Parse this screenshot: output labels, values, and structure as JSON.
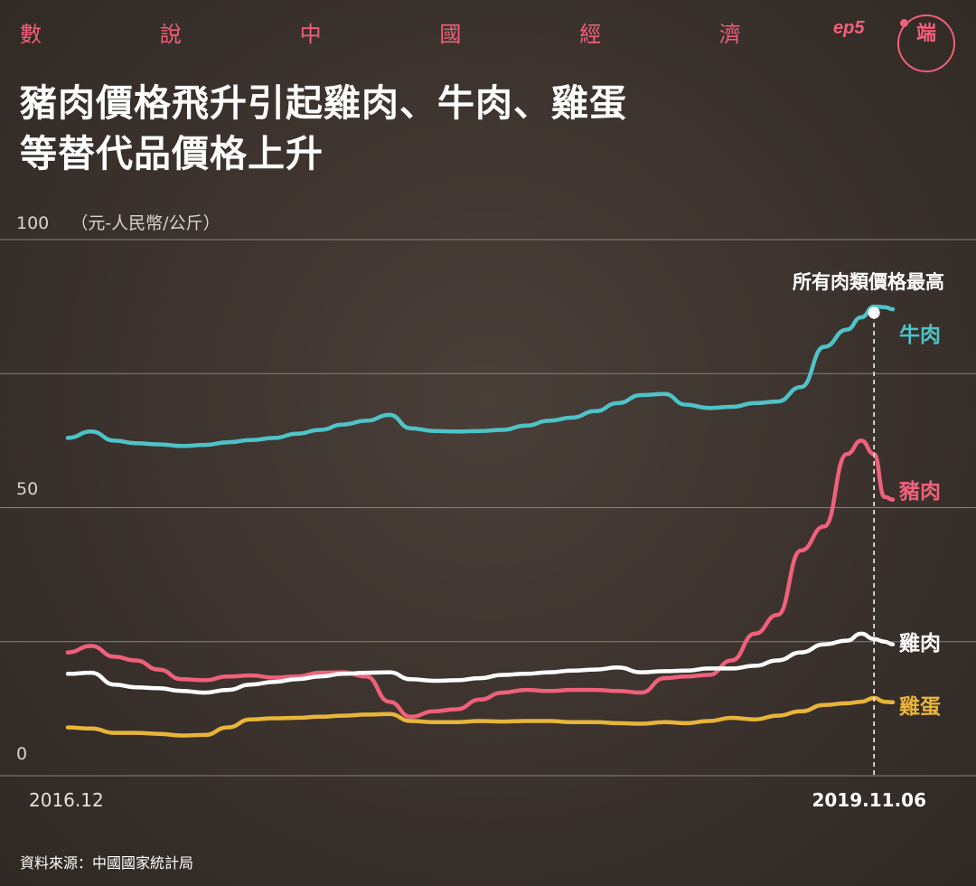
{
  "header": {
    "series_chars": [
      "數",
      "說",
      "中",
      "國",
      "經",
      "濟"
    ],
    "episode": "ep5",
    "logo_text": "端"
  },
  "headline": {
    "line1": "豬肉價格飛升引起雞肉、牛肉、雞蛋",
    "line2": "等替代品價格上升"
  },
  "colors": {
    "accent": "#f0607a",
    "beef": "#4ec3c8",
    "pork": "#f0607a",
    "chicken": "#ffffff",
    "egg": "#e8b53a",
    "grid": "#8a827c"
  },
  "chart_data": {
    "type": "line",
    "unit": "（元-人民幣/公斤）",
    "ylim": [
      0,
      100
    ],
    "y_ticks": [
      0,
      50,
      100
    ],
    "y_tick_labels": [
      "0",
      "50",
      "100"
    ],
    "grid": true,
    "x_start_label": "2016.12",
    "x_end_label": "2019.11.06",
    "annotation": "所有肉類價格最高",
    "x": [
      "2016-12-01",
      "2017-01-01",
      "2017-02-01",
      "2017-03-01",
      "2017-04-01",
      "2017-05-01",
      "2017-06-01",
      "2017-07-01",
      "2017-08-01",
      "2017-09-01",
      "2017-10-01",
      "2017-11-01",
      "2017-12-01",
      "2018-01-01",
      "2018-02-01",
      "2018-03-01",
      "2018-04-01",
      "2018-05-01",
      "2018-06-01",
      "2018-07-01",
      "2018-08-01",
      "2018-09-01",
      "2018-10-01",
      "2018-11-01",
      "2018-12-01",
      "2019-01-01",
      "2019-02-01",
      "2019-03-01",
      "2019-04-01",
      "2019-05-01",
      "2019-06-01",
      "2019-07-01",
      "2019-08-01",
      "2019-09-01",
      "2019-10-01",
      "2019-10-20",
      "2019-11-06",
      "2019-11-20",
      "2019-12-01"
    ],
    "series": [
      {
        "name": "牛肉",
        "color": "#4ec3c8",
        "values": [
          63.0,
          64.2,
          62.5,
          62.0,
          61.8,
          61.5,
          61.7,
          62.2,
          62.6,
          63.0,
          63.8,
          64.5,
          65.5,
          66.2,
          67.3,
          64.8,
          64.3,
          64.2,
          64.3,
          64.5,
          65.3,
          66.2,
          66.8,
          68.0,
          69.5,
          71.0,
          71.2,
          69.2,
          68.6,
          68.8,
          69.5,
          69.8,
          72.5,
          80.0,
          83.2,
          85.5,
          87.5,
          87.4,
          87.0
        ]
      },
      {
        "name": "豬肉",
        "color": "#f0607a",
        "values": [
          23.0,
          24.2,
          22.2,
          21.5,
          19.8,
          18.0,
          17.8,
          18.5,
          18.7,
          18.3,
          18.5,
          19.2,
          19.3,
          18.5,
          13.8,
          11.0,
          12.0,
          12.4,
          14.2,
          15.5,
          16.0,
          15.8,
          16.0,
          16.0,
          15.8,
          15.5,
          18.2,
          18.5,
          18.8,
          21.5,
          26.5,
          30.0,
          42.0,
          46.5,
          60.0,
          62.5,
          60.0,
          52.0,
          51.5
        ]
      },
      {
        "name": "雞肉",
        "color": "#ffffff",
        "values": [
          19.0,
          19.2,
          17.0,
          16.5,
          16.3,
          15.8,
          15.5,
          16.0,
          17.0,
          17.5,
          18.0,
          18.5,
          19.0,
          19.2,
          19.3,
          18.0,
          17.7,
          17.8,
          18.2,
          18.8,
          19.0,
          19.3,
          19.6,
          19.8,
          20.2,
          19.3,
          19.5,
          19.6,
          20.0,
          20.0,
          20.5,
          21.5,
          23.0,
          24.5,
          25.2,
          26.5,
          25.5,
          25.0,
          24.5
        ]
      },
      {
        "name": "雞蛋",
        "color": "#e8b53a",
        "values": [
          9.0,
          8.8,
          8.0,
          8.0,
          7.8,
          7.5,
          7.6,
          9.0,
          10.5,
          10.7,
          10.8,
          11.0,
          11.2,
          11.4,
          11.5,
          10.2,
          10.0,
          10.0,
          10.2,
          10.1,
          10.2,
          10.2,
          10.0,
          10.0,
          9.8,
          9.7,
          10.0,
          9.8,
          10.2,
          10.8,
          10.5,
          11.2,
          12.0,
          13.2,
          13.5,
          13.8,
          14.5,
          13.8,
          13.7
        ]
      }
    ]
  },
  "source": "資料來源：中國國家統計局"
}
